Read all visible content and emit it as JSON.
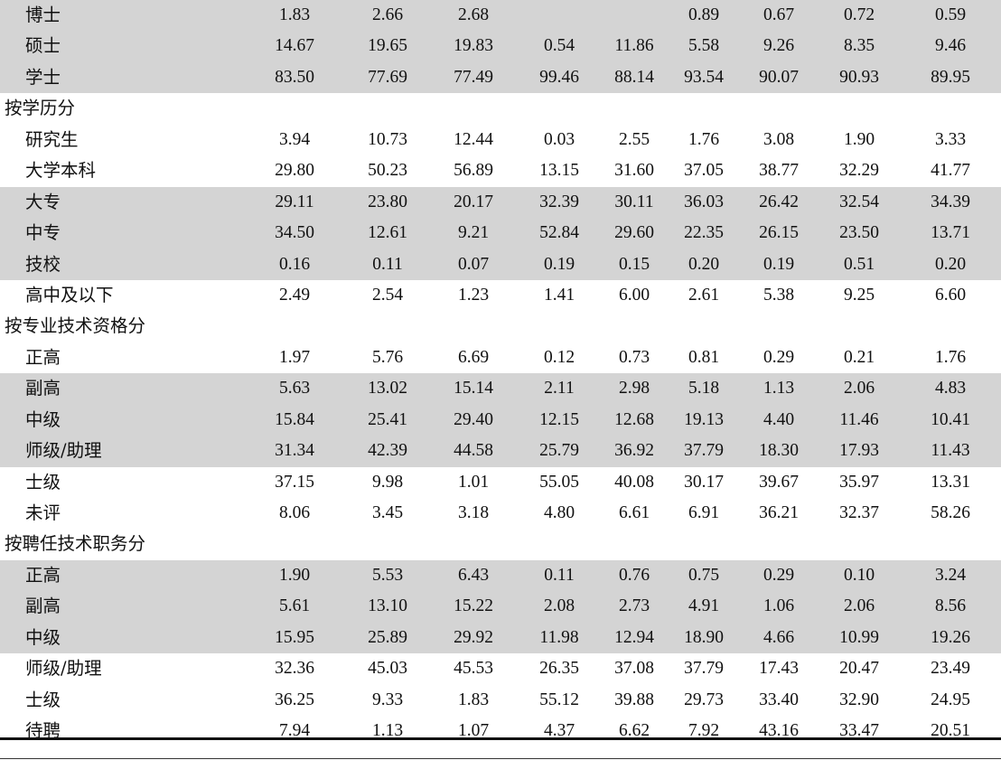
{
  "rows": [
    {
      "label": "博士",
      "kind": "item",
      "shade": true,
      "values": [
        "1.83",
        "2.66",
        "2.68",
        "",
        "",
        "0.89",
        "0.67",
        "0.72",
        "0.59"
      ]
    },
    {
      "label": "硕士",
      "kind": "item",
      "shade": true,
      "values": [
        "14.67",
        "19.65",
        "19.83",
        "0.54",
        "11.86",
        "5.58",
        "9.26",
        "8.35",
        "9.46"
      ]
    },
    {
      "label": "学士",
      "kind": "item",
      "shade": true,
      "values": [
        "83.50",
        "77.69",
        "77.49",
        "99.46",
        "88.14",
        "93.54",
        "90.07",
        "90.93",
        "89.95"
      ]
    },
    {
      "label": "按学历分",
      "kind": "section",
      "shade": false,
      "values": []
    },
    {
      "label": "研究生",
      "kind": "item",
      "shade": false,
      "values": [
        "3.94",
        "10.73",
        "12.44",
        "0.03",
        "2.55",
        "1.76",
        "3.08",
        "1.90",
        "3.33"
      ]
    },
    {
      "label": "大学本科",
      "kind": "item",
      "shade": false,
      "values": [
        "29.80",
        "50.23",
        "56.89",
        "13.15",
        "31.60",
        "37.05",
        "38.77",
        "32.29",
        "41.77"
      ]
    },
    {
      "label": "大专",
      "kind": "item",
      "shade": true,
      "values": [
        "29.11",
        "23.80",
        "20.17",
        "32.39",
        "30.11",
        "36.03",
        "26.42",
        "32.54",
        "34.39"
      ]
    },
    {
      "label": "中专",
      "kind": "item",
      "shade": true,
      "values": [
        "34.50",
        "12.61",
        "9.21",
        "52.84",
        "29.60",
        "22.35",
        "26.15",
        "23.50",
        "13.71"
      ]
    },
    {
      "label": "技校",
      "kind": "item",
      "shade": true,
      "values": [
        "0.16",
        "0.11",
        "0.07",
        "0.19",
        "0.15",
        "0.20",
        "0.19",
        "0.51",
        "0.20"
      ]
    },
    {
      "label": "高中及以下",
      "kind": "item",
      "shade": false,
      "values": [
        "2.49",
        "2.54",
        "1.23",
        "1.41",
        "6.00",
        "2.61",
        "5.38",
        "9.25",
        "6.60"
      ]
    },
    {
      "label": "按专业技术资格分",
      "kind": "section",
      "shade": false,
      "values": []
    },
    {
      "label": "正高",
      "kind": "item",
      "shade": false,
      "values": [
        "1.97",
        "5.76",
        "6.69",
        "0.12",
        "0.73",
        "0.81",
        "0.29",
        "0.21",
        "1.76"
      ]
    },
    {
      "label": "副高",
      "kind": "item",
      "shade": true,
      "values": [
        "5.63",
        "13.02",
        "15.14",
        "2.11",
        "2.98",
        "5.18",
        "1.13",
        "2.06",
        "4.83"
      ]
    },
    {
      "label": "中级",
      "kind": "item",
      "shade": true,
      "values": [
        "15.84",
        "25.41",
        "29.40",
        "12.15",
        "12.68",
        "19.13",
        "4.40",
        "11.46",
        "10.41"
      ]
    },
    {
      "label": "师级/助理",
      "kind": "item",
      "shade": true,
      "values": [
        "31.34",
        "42.39",
        "44.58",
        "25.79",
        "36.92",
        "37.79",
        "18.30",
        "17.93",
        "11.43"
      ]
    },
    {
      "label": "士级",
      "kind": "item",
      "shade": false,
      "values": [
        "37.15",
        "9.98",
        "1.01",
        "55.05",
        "40.08",
        "30.17",
        "39.67",
        "35.97",
        "13.31"
      ]
    },
    {
      "label": "未评",
      "kind": "item",
      "shade": false,
      "values": [
        "8.06",
        "3.45",
        "3.18",
        "4.80",
        "6.61",
        "6.91",
        "36.21",
        "32.37",
        "58.26"
      ]
    },
    {
      "label": "按聘任技术职务分",
      "kind": "section",
      "shade": false,
      "values": []
    },
    {
      "label": "正高",
      "kind": "item",
      "shade": true,
      "values": [
        "1.90",
        "5.53",
        "6.43",
        "0.11",
        "0.76",
        "0.75",
        "0.29",
        "0.10",
        "3.24"
      ]
    },
    {
      "label": "副高",
      "kind": "item",
      "shade": true,
      "values": [
        "5.61",
        "13.10",
        "15.22",
        "2.08",
        "2.73",
        "4.91",
        "1.06",
        "2.06",
        "8.56"
      ]
    },
    {
      "label": "中级",
      "kind": "item",
      "shade": true,
      "values": [
        "15.95",
        "25.89",
        "29.92",
        "11.98",
        "12.94",
        "18.90",
        "4.66",
        "10.99",
        "19.26"
      ]
    },
    {
      "label": "师级/助理",
      "kind": "item",
      "shade": false,
      "values": [
        "32.36",
        "45.03",
        "45.53",
        "26.35",
        "37.08",
        "37.79",
        "17.43",
        "20.47",
        "23.49"
      ]
    },
    {
      "label": "士级",
      "kind": "item",
      "shade": false,
      "values": [
        "36.25",
        "9.33",
        "1.83",
        "55.12",
        "39.88",
        "29.73",
        "33.40",
        "32.90",
        "24.95"
      ]
    },
    {
      "label": "待聘",
      "kind": "item",
      "shade": false,
      "values": [
        "7.94",
        "1.13",
        "1.07",
        "4.37",
        "6.62",
        "7.92",
        "43.16",
        "33.47",
        "20.51"
      ]
    }
  ]
}
